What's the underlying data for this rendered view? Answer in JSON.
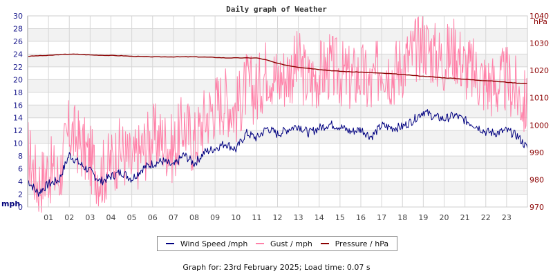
{
  "chart_data": {
    "type": "line",
    "title": "Daily graph of Weather",
    "xlabel": "",
    "ylabel_left": "mph",
    "ylabel_right": "hPa",
    "x_ticks": [
      "01",
      "02",
      "03",
      "04",
      "05",
      "06",
      "07",
      "08",
      "09",
      "10",
      "11",
      "12",
      "13",
      "14",
      "15",
      "16",
      "17",
      "18",
      "19",
      "20",
      "21",
      "22",
      "23"
    ],
    "y_left": {
      "min": 0,
      "max": 30,
      "step": 2,
      "ticks": [
        0,
        2,
        4,
        6,
        8,
        10,
        12,
        14,
        16,
        18,
        20,
        22,
        24,
        26,
        28,
        30
      ]
    },
    "y_right": {
      "min": 970,
      "max": 1040,
      "ticks": [
        970,
        980,
        990,
        1000,
        1010,
        1020,
        1030,
        1040
      ]
    },
    "grid": true,
    "legend_position": "bottom",
    "x_hours": [
      0,
      0.5,
      1,
      1.5,
      2,
      2.5,
      3,
      3.5,
      4,
      4.5,
      5,
      5.5,
      6,
      6.5,
      7,
      7.5,
      8,
      8.5,
      9,
      9.5,
      10,
      10.5,
      11,
      11.5,
      12,
      12.5,
      13,
      13.5,
      14,
      14.5,
      15,
      15.5,
      16,
      16.5,
      17,
      17.5,
      18,
      18.5,
      19,
      19.5,
      20,
      20.5,
      21,
      21.5,
      22,
      22.5,
      23,
      23.5,
      24
    ],
    "series": [
      {
        "name": "Wind Speed /mph",
        "color": "#000080",
        "axis": "left",
        "values": [
          4.2,
          2.2,
          3.6,
          4.2,
          8.2,
          6.8,
          5.6,
          4.0,
          4.8,
          5.5,
          4.4,
          6.0,
          6.8,
          7.2,
          6.4,
          8.2,
          6.8,
          8.6,
          9.2,
          10.0,
          9.0,
          11.6,
          10.8,
          12.4,
          11.4,
          12.2,
          12.8,
          11.6,
          12.4,
          13.0,
          12.6,
          11.8,
          12.2,
          11.0,
          12.8,
          12.4,
          12.6,
          13.6,
          15.0,
          14.2,
          13.8,
          14.4,
          13.6,
          12.8,
          11.8,
          11.6,
          12.0,
          11.2,
          9.2
        ]
      },
      {
        "name": "Gust / mph",
        "color": "#ff80a8",
        "axis": "left",
        "values": [
          9.0,
          3.5,
          6.0,
          4.5,
          12.0,
          10.0,
          7.5,
          5.0,
          7.0,
          9.0,
          6.5,
          9.0,
          11.0,
          10.5,
          9.0,
          13.0,
          10.0,
          14.0,
          16.0,
          17.0,
          15.0,
          19.0,
          18.0,
          22.0,
          20.0,
          21.0,
          22.5,
          19.5,
          21.0,
          22.0,
          21.0,
          20.0,
          21.0,
          18.5,
          23.0,
          21.0,
          22.5,
          24.0,
          26.0,
          24.0,
          23.0,
          25.0,
          22.0,
          21.0,
          19.5,
          19.0,
          20.0,
          18.0,
          15.5
        ]
      },
      {
        "name": "Pressure / hPa",
        "color": "#8b0000",
        "axis": "right",
        "values": [
          1025.2,
          1025.4,
          1025.5,
          1025.8,
          1026.0,
          1025.9,
          1025.7,
          1025.6,
          1025.5,
          1025.4,
          1025.2,
          1025.1,
          1025.0,
          1025.0,
          1025.0,
          1025.0,
          1025.0,
          1024.9,
          1024.8,
          1024.6,
          1024.6,
          1024.6,
          1024.6,
          1023.8,
          1022.6,
          1021.8,
          1021.2,
          1020.8,
          1020.4,
          1020.0,
          1019.7,
          1019.5,
          1019.4,
          1019.2,
          1019.0,
          1018.8,
          1018.5,
          1018.2,
          1017.9,
          1017.6,
          1017.3,
          1017.1,
          1016.8,
          1016.5,
          1016.3,
          1016.0,
          1015.7,
          1015.4,
          1015.2
        ]
      }
    ]
  },
  "legend": {
    "items": [
      {
        "label": "Wind Speed /mph",
        "color": "#000080"
      },
      {
        "label": "Gust / mph",
        "color": "#ff80a8"
      },
      {
        "label": "Pressure / hPa",
        "color": "#8b0000"
      }
    ]
  },
  "footer": {
    "text": "Graph for: 23rd February 2025; Load time: 0.07 s"
  }
}
